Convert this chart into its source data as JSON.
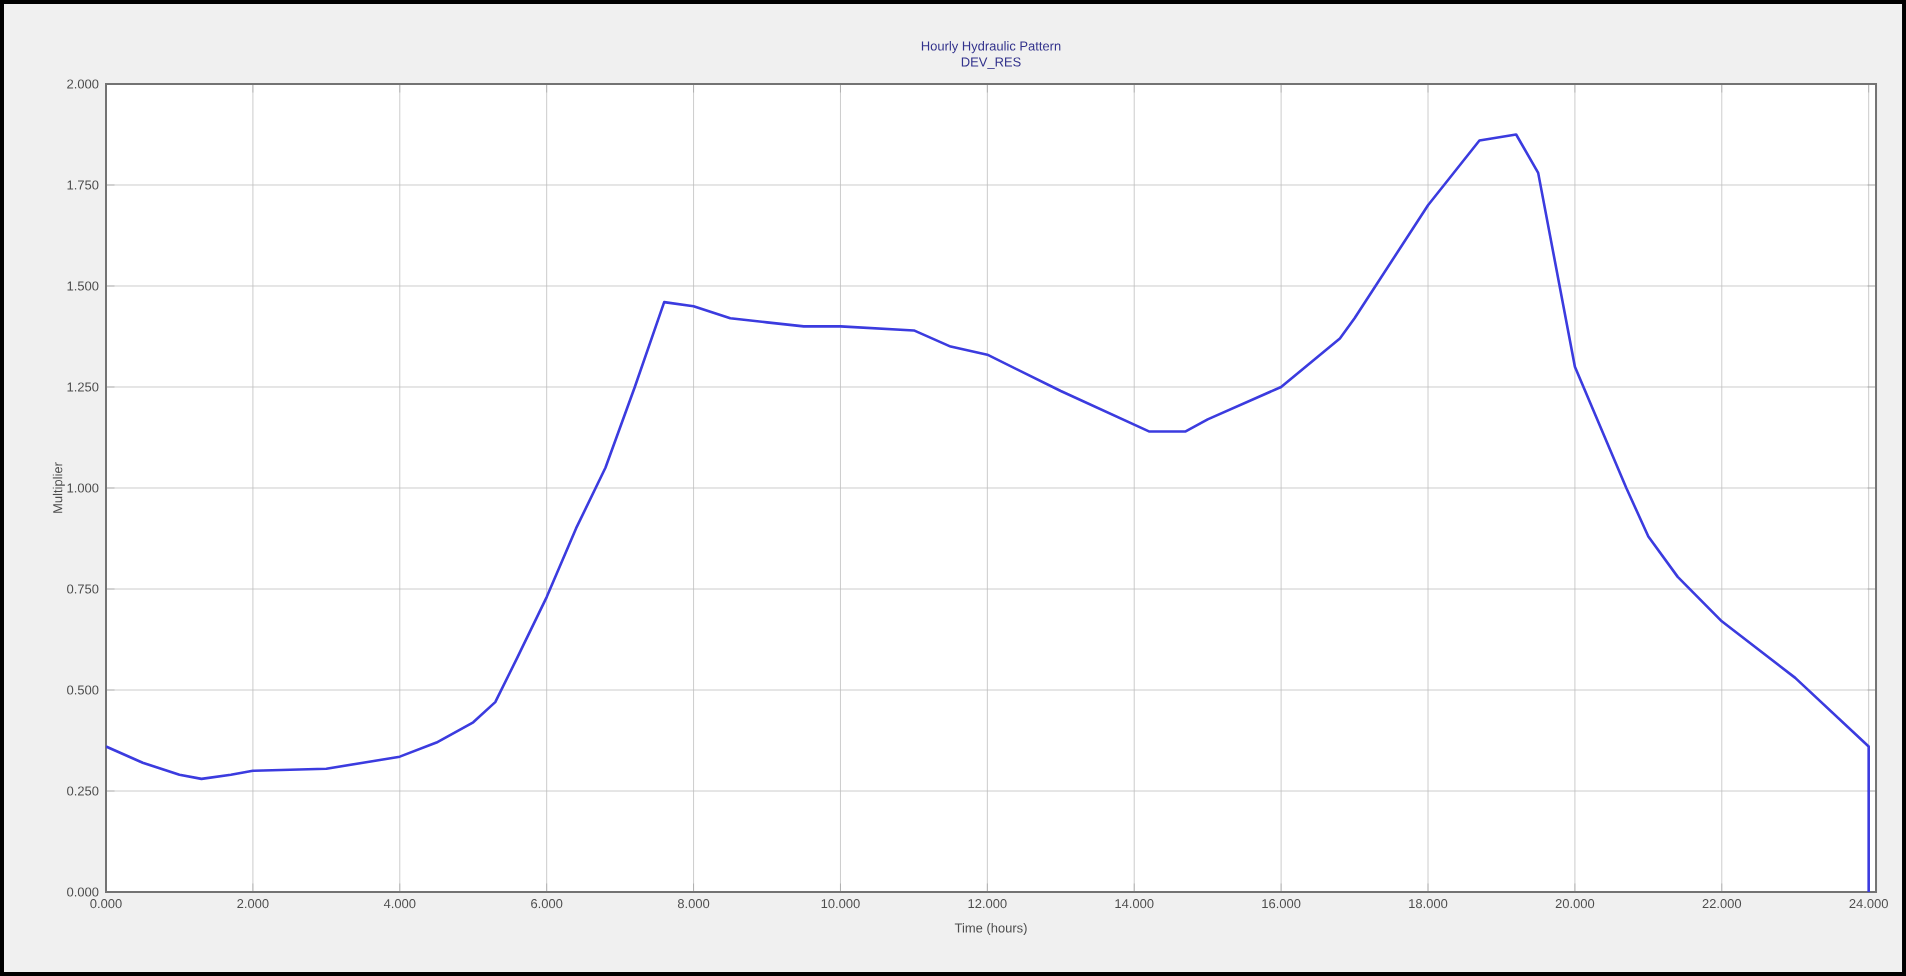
{
  "chart_data": {
    "type": "line",
    "title": "Hourly Hydraulic Pattern",
    "subtitle": "DEV_RES",
    "xlabel": "Time (hours)",
    "ylabel": "Multiplier",
    "x": [
      0,
      0.5,
      1.0,
      1.3,
      1.7,
      2,
      3,
      3.5,
      4,
      4.5,
      5,
      5.3,
      5.6,
      6,
      6.4,
      6.8,
      7.2,
      7.6,
      8,
      8.5,
      9,
      9.5,
      10,
      11,
      11.5,
      12,
      13,
      14.2,
      14.7,
      15,
      16,
      16.8,
      17,
      18,
      18.7,
      19.2,
      19.5,
      20,
      20.7,
      21,
      21.4,
      22,
      23,
      24,
      24
    ],
    "series": [
      {
        "color": "#3b3bdf",
        "values": [
          0.36,
          0.32,
          0.29,
          0.28,
          0.29,
          0.3,
          0.305,
          0.32,
          0.335,
          0.37,
          0.42,
          0.47,
          0.58,
          0.73,
          0.9,
          1.05,
          1.25,
          1.46,
          1.45,
          1.42,
          1.41,
          1.4,
          1.4,
          1.39,
          1.35,
          1.33,
          1.24,
          1.14,
          1.14,
          1.17,
          1.25,
          1.37,
          1.42,
          1.7,
          1.86,
          1.875,
          1.78,
          1.3,
          1.0,
          0.88,
          0.78,
          0.67,
          0.53,
          0.36,
          0
        ]
      }
    ],
    "xlim": [
      0,
      24.1
    ],
    "ylim": [
      0,
      2
    ],
    "xticks": [
      {
        "value": 0,
        "label": "0.000"
      },
      {
        "value": 2,
        "label": "2.000"
      },
      {
        "value": 4,
        "label": "4.000"
      },
      {
        "value": 6,
        "label": "6.000"
      },
      {
        "value": 8,
        "label": "8.000"
      },
      {
        "value": 10,
        "label": "10.000"
      },
      {
        "value": 12,
        "label": "12.000"
      },
      {
        "value": 14,
        "label": "14.000"
      },
      {
        "value": 16,
        "label": "16.000"
      },
      {
        "value": 18,
        "label": "18.000"
      },
      {
        "value": 20,
        "label": "20.000"
      },
      {
        "value": 22,
        "label": "22.000"
      },
      {
        "value": 24,
        "label": "24.000"
      }
    ],
    "yticks": [
      {
        "value": 0,
        "label": "0.000"
      },
      {
        "value": 0.25,
        "label": "0.250"
      },
      {
        "value": 0.5,
        "label": "0.500"
      },
      {
        "value": 0.75,
        "label": "0.750"
      },
      {
        "value": 1,
        "label": "1.000"
      },
      {
        "value": 1.25,
        "label": "1.250"
      },
      {
        "value": 1.5,
        "label": "1.500"
      },
      {
        "value": 1.75,
        "label": "1.750"
      },
      {
        "value": 2,
        "label": "2.000"
      }
    ],
    "grid": true,
    "marker": "none",
    "line_style": "solid"
  }
}
